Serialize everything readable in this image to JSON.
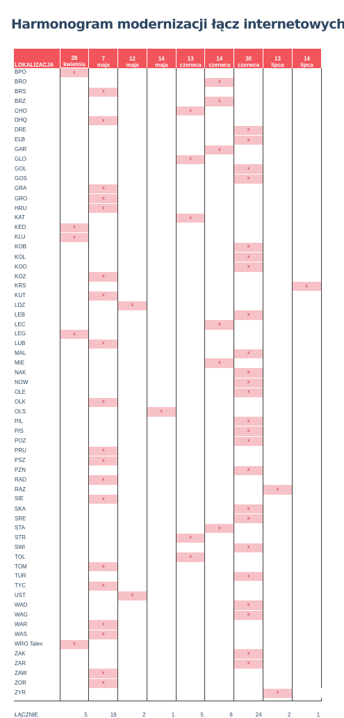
{
  "title": "Harmonogram modernizacji łącz internetowych",
  "header": {
    "location_label": "LOKALIZACJA",
    "columns": [
      {
        "day": "28",
        "month": "kwietnia"
      },
      {
        "day": "7",
        "month": "maja"
      },
      {
        "day": "12",
        "month": "maja"
      },
      {
        "day": "14",
        "month": "maja"
      },
      {
        "day": "13",
        "month": "czerwca"
      },
      {
        "day": "14",
        "month": "czerwca"
      },
      {
        "day": "30",
        "month": "czerwca"
      },
      {
        "day": "13",
        "month": "lipca"
      },
      {
        "day": "14",
        "month": "lipca"
      }
    ]
  },
  "mark_symbol": "x",
  "rows": [
    {
      "name": "BPO",
      "col": 0
    },
    {
      "name": "BRO",
      "col": 5
    },
    {
      "name": "BRS",
      "col": 1
    },
    {
      "name": "BRZ",
      "col": 5
    },
    {
      "name": "CHO",
      "col": 4
    },
    {
      "name": "DHQ",
      "col": 1
    },
    {
      "name": "DRE",
      "col": 6
    },
    {
      "name": "ELB",
      "col": 6
    },
    {
      "name": "GAR",
      "col": 5
    },
    {
      "name": "GLO",
      "col": 4
    },
    {
      "name": "GOL",
      "col": 6
    },
    {
      "name": "GOS",
      "col": 6
    },
    {
      "name": "GRA",
      "col": 1
    },
    {
      "name": "GRO",
      "col": 1
    },
    {
      "name": "HRU",
      "col": 1
    },
    {
      "name": "KAT",
      "col": 4
    },
    {
      "name": "KED",
      "col": 0
    },
    {
      "name": "KLU",
      "col": 0
    },
    {
      "name": "KOB",
      "col": 6
    },
    {
      "name": "KOL",
      "col": 6
    },
    {
      "name": "KOO",
      "col": 6
    },
    {
      "name": "KOZ",
      "col": 1
    },
    {
      "name": "KRS",
      "col": 8
    },
    {
      "name": "KUT",
      "col": 1
    },
    {
      "name": "LDZ",
      "col": 2
    },
    {
      "name": "LEB",
      "col": 6
    },
    {
      "name": "LEC",
      "col": 5
    },
    {
      "name": "LEG",
      "col": 0
    },
    {
      "name": "LUB",
      "col": 1
    },
    {
      "name": "MAL",
      "col": 6
    },
    {
      "name": "MIE",
      "col": 5
    },
    {
      "name": "NAK",
      "col": 6
    },
    {
      "name": "NOW",
      "col": 6
    },
    {
      "name": "OLE",
      "col": 6
    },
    {
      "name": "OLK",
      "col": 1
    },
    {
      "name": "OLS",
      "col": 3
    },
    {
      "name": "PIL",
      "col": 6
    },
    {
      "name": "PIS",
      "col": 6
    },
    {
      "name": "POZ",
      "col": 6
    },
    {
      "name": "PRU",
      "col": 1
    },
    {
      "name": "PSZ",
      "col": 1
    },
    {
      "name": "PZN",
      "col": 6
    },
    {
      "name": "RAD",
      "col": 1
    },
    {
      "name": "RAZ",
      "col": 7
    },
    {
      "name": "SIE",
      "col": 1
    },
    {
      "name": "SKA",
      "col": 6
    },
    {
      "name": "SRE",
      "col": 6
    },
    {
      "name": "STA",
      "col": 5
    },
    {
      "name": "STR",
      "col": 4
    },
    {
      "name": "SWI",
      "col": 6
    },
    {
      "name": "TOL",
      "col": 4
    },
    {
      "name": "TOM",
      "col": 1
    },
    {
      "name": "TUR",
      "col": 6
    },
    {
      "name": "TYC",
      "col": 1
    },
    {
      "name": "UST",
      "col": 2
    },
    {
      "name": "WAD",
      "col": 6
    },
    {
      "name": "WAG",
      "col": 6
    },
    {
      "name": "WAR",
      "col": 1
    },
    {
      "name": "WAS",
      "col": 1
    },
    {
      "name": "WRO Talex",
      "col": 0
    },
    {
      "name": "ZAK",
      "col": 6
    },
    {
      "name": "ZAR",
      "col": 6
    },
    {
      "name": "ZAW",
      "col": 1
    },
    {
      "name": "ZOR",
      "col": 1
    },
    {
      "name": "ZYR",
      "col": 7
    }
  ],
  "totals": {
    "label": "ŁĄCZNIE",
    "values": [
      "5",
      "19",
      "2",
      "1",
      "5",
      "6",
      "24",
      "2",
      "1"
    ]
  },
  "colors": {
    "header_bg": "#f2545b",
    "mark_bg": "#f7c2c7",
    "mark_text": "#c8334a",
    "title": "#2e4761",
    "body_text": "#2e4761"
  }
}
